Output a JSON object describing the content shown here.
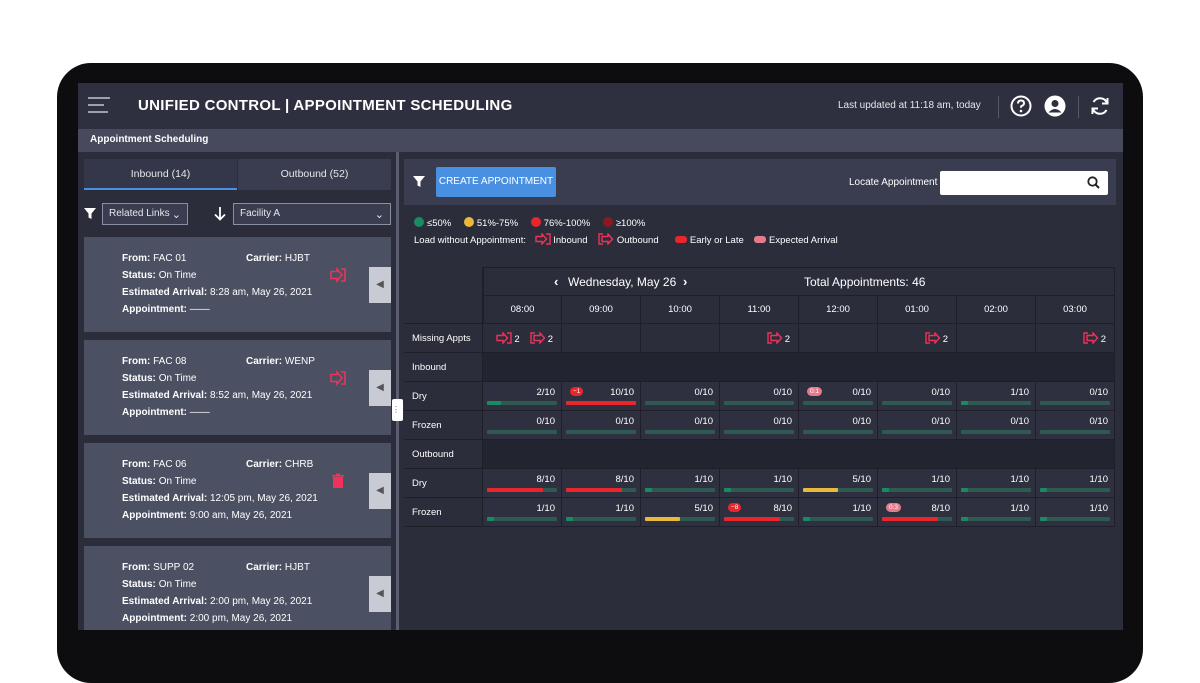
{
  "header": {
    "title": "UNIFIED CONTROL | APPOINTMENT SCHEDULING",
    "last_updated": "Last updated at 11:18 am, today"
  },
  "breadcrumb": "Appointment Scheduling",
  "left_panel": {
    "tabs": [
      {
        "label": "Inbound (14)",
        "active": true
      },
      {
        "label": "Outbound (52)",
        "active": false
      }
    ],
    "related_links": "Related Links",
    "facility": "Facility A",
    "cards": [
      {
        "from_label": "From:",
        "from": "FAC 01",
        "carrier_label": "Carrier:",
        "carrier": "HJBT",
        "status_label": "Status:",
        "status": "On Time",
        "eta_label": "Estimated Arrival:",
        "eta": "8:28 am, May 26, 2021",
        "appt_label": "Appointment:",
        "appt": "——",
        "icon": "inbound-icon"
      },
      {
        "from_label": "From:",
        "from": "FAC 08",
        "carrier_label": "Carrier:",
        "carrier": "WENP",
        "status_label": "Status:",
        "status": "On Time",
        "eta_label": "Estimated Arrival:",
        "eta": "8:52 am, May 26, 2021",
        "appt_label": "Appointment:",
        "appt": "——",
        "icon": "inbound-icon"
      },
      {
        "from_label": "From:",
        "from": "FAC 06",
        "carrier_label": "Carrier:",
        "carrier": "CHRB",
        "status_label": "Status:",
        "status": "On Time",
        "eta_label": "Estimated Arrival:",
        "eta": "12:05 pm, May 26, 2021",
        "appt_label": "Appointment:",
        "appt": "9:00 am, May 26, 2021",
        "icon": "trash-icon"
      },
      {
        "from_label": "From:",
        "from": "SUPP 02",
        "carrier_label": "Carrier:",
        "carrier": "HJBT",
        "status_label": "Status:",
        "status": "On Time",
        "eta_label": "Estimated Arrival:",
        "eta": "2:00 pm, May 26, 2021",
        "appt_label": "Appointment:",
        "appt": "2:00 pm, May 26, 2021",
        "icon": ""
      }
    ]
  },
  "toolbar": {
    "create_label": "CREATE APPOINTMENT",
    "locate_label": "Locate Appointment",
    "locate_value": ""
  },
  "legend": {
    "items": [
      {
        "label": "≤50%",
        "color": "#1a8a63"
      },
      {
        "label": "51%-75%",
        "color": "#e8b93b"
      },
      {
        "label": "76%-100%",
        "color": "#e8262c"
      },
      {
        "label": "≥100%",
        "color": "#8b1a1f"
      }
    ],
    "load_label": "Load without Appointment:",
    "inbound": "Inbound",
    "outbound": "Outbound",
    "early_late": "Early or Late",
    "expected": "Expected Arrival"
  },
  "schedule": {
    "date": "Wednesday, May 26",
    "total": "Total Appointments: 46",
    "times": [
      "08:00",
      "09:00",
      "10:00",
      "11:00",
      "12:00",
      "01:00",
      "02:00",
      "03:00"
    ],
    "missing_label": "Missing Appts",
    "missing": [
      {
        "inbound": "2",
        "outbound": "2"
      },
      {
        "inbound": "",
        "outbound": ""
      },
      {
        "inbound": "",
        "outbound": ""
      },
      {
        "inbound": "",
        "outbound": "2"
      },
      {
        "inbound": "",
        "outbound": ""
      },
      {
        "inbound": "",
        "outbound": "2"
      },
      {
        "inbound": "",
        "outbound": ""
      },
      {
        "inbound": "",
        "outbound": "2"
      }
    ],
    "sections": [
      {
        "label": "Inbound",
        "rows": [
          {
            "label": "Dry",
            "cells": [
              {
                "value": "2/10",
                "load": 0.2,
                "color": "#1a8a63",
                "badge": ""
              },
              {
                "value": "10/10",
                "load": 1.0,
                "color": "#e8262c",
                "badge": "−1"
              },
              {
                "value": "0/10",
                "load": 0,
                "color": "#1a8a63",
                "badge": ""
              },
              {
                "value": "0/10",
                "load": 0,
                "color": "#1a8a63",
                "badge": ""
              },
              {
                "value": "0/10",
                "load": 0,
                "color": "#1a8a63",
                "badge": "0:1"
              },
              {
                "value": "0/10",
                "load": 0,
                "color": "#1a8a63",
                "badge": ""
              },
              {
                "value": "1/10",
                "load": 0.1,
                "color": "#1a8a63",
                "badge": ""
              },
              {
                "value": "0/10",
                "load": 0,
                "color": "#1a8a63",
                "badge": ""
              }
            ]
          },
          {
            "label": "Frozen",
            "cells": [
              {
                "value": "0/10",
                "load": 0,
                "color": "#1a8a63",
                "badge": ""
              },
              {
                "value": "0/10",
                "load": 0,
                "color": "#1a8a63",
                "badge": ""
              },
              {
                "value": "0/10",
                "load": 0,
                "color": "#1a8a63",
                "badge": ""
              },
              {
                "value": "0/10",
                "load": 0,
                "color": "#1a8a63",
                "badge": ""
              },
              {
                "value": "0/10",
                "load": 0,
                "color": "#1a8a63",
                "badge": ""
              },
              {
                "value": "0/10",
                "load": 0,
                "color": "#1a8a63",
                "badge": ""
              },
              {
                "value": "0/10",
                "load": 0,
                "color": "#1a8a63",
                "badge": ""
              },
              {
                "value": "0/10",
                "load": 0,
                "color": "#1a8a63",
                "badge": ""
              }
            ]
          }
        ]
      },
      {
        "label": "Outbound",
        "rows": [
          {
            "label": "Dry",
            "cells": [
              {
                "value": "8/10",
                "load": 0.8,
                "color": "#e8262c",
                "badge": ""
              },
              {
                "value": "8/10",
                "load": 0.8,
                "color": "#e8262c",
                "badge": ""
              },
              {
                "value": "1/10",
                "load": 0.1,
                "color": "#1a8a63",
                "badge": ""
              },
              {
                "value": "1/10",
                "load": 0.1,
                "color": "#1a8a63",
                "badge": ""
              },
              {
                "value": "5/10",
                "load": 0.5,
                "color": "#e8b93b",
                "badge": ""
              },
              {
                "value": "1/10",
                "load": 0.1,
                "color": "#1a8a63",
                "badge": ""
              },
              {
                "value": "1/10",
                "load": 0.1,
                "color": "#1a8a63",
                "badge": ""
              },
              {
                "value": "1/10",
                "load": 0.1,
                "color": "#1a8a63",
                "badge": ""
              }
            ]
          },
          {
            "label": "Frozen",
            "cells": [
              {
                "value": "1/10",
                "load": 0.1,
                "color": "#1a8a63",
                "badge": ""
              },
              {
                "value": "1/10",
                "load": 0.1,
                "color": "#1a8a63",
                "badge": ""
              },
              {
                "value": "5/10",
                "load": 0.5,
                "color": "#e8b93b",
                "badge": ""
              },
              {
                "value": "8/10",
                "load": 0.8,
                "color": "#e8262c",
                "badge": "−8"
              },
              {
                "value": "1/10",
                "load": 0.1,
                "color": "#1a8a63",
                "badge": ""
              },
              {
                "value": "8/10",
                "load": 0.8,
                "color": "#e8262c",
                "badge": "0:3"
              },
              {
                "value": "1/10",
                "load": 0.1,
                "color": "#1a8a63",
                "badge": ""
              },
              {
                "value": "1/10",
                "load": 0.1,
                "color": "#1a8a63",
                "badge": ""
              }
            ]
          }
        ]
      }
    ]
  }
}
